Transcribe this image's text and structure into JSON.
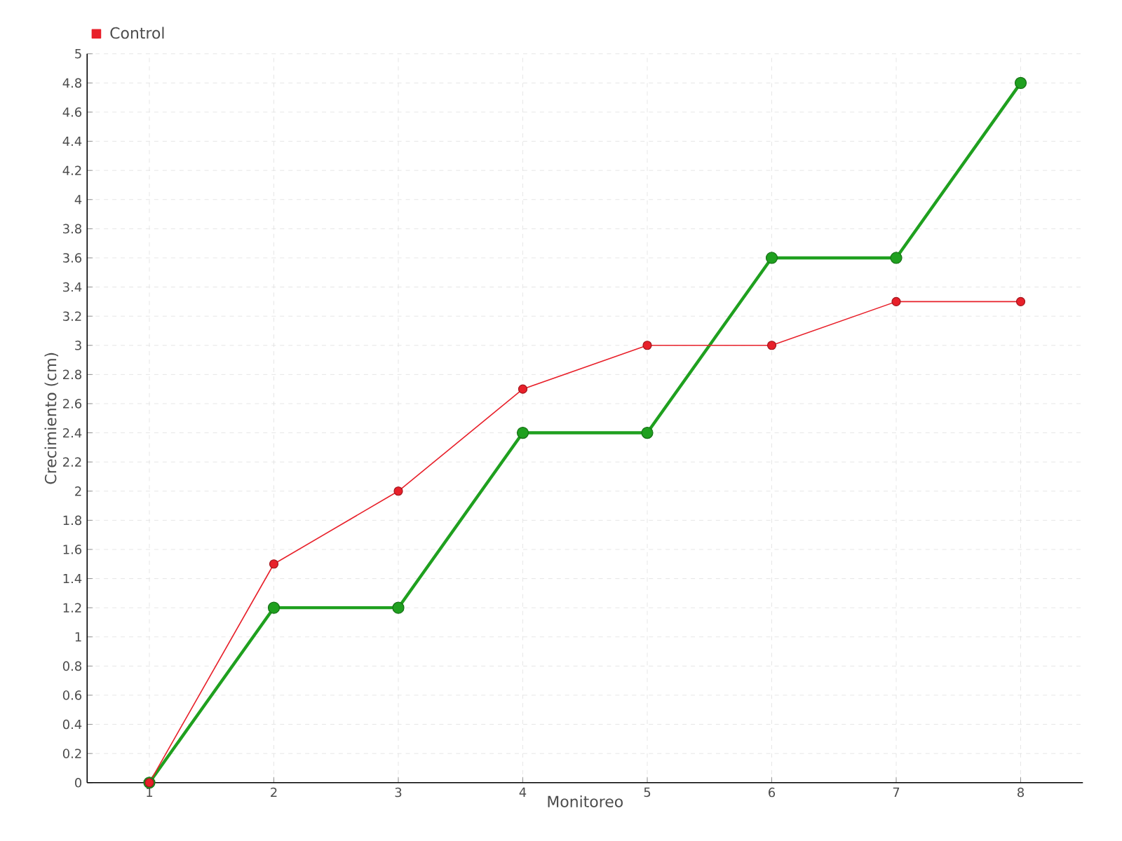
{
  "chart_data": {
    "type": "line",
    "xlabel": "Monitoreo",
    "ylabel": "Crecimiento (cm)",
    "xlim": [
      0.5,
      8.5
    ],
    "xticks": [
      1,
      2,
      3,
      4,
      5,
      6,
      7,
      8
    ],
    "ylim": [
      0,
      5
    ],
    "yticks": [
      0,
      0.2,
      0.4,
      0.6,
      0.8,
      1,
      1.2,
      1.4,
      1.6,
      1.8,
      2,
      2.2,
      2.4,
      2.6,
      2.8,
      3,
      3.2,
      3.4,
      3.6,
      3.8,
      4,
      4.2,
      4.4,
      4.6,
      4.8,
      5
    ],
    "x": [
      1,
      2,
      3,
      4,
      5,
      6,
      7,
      8
    ],
    "series": [
      {
        "color": "#1fa01f",
        "values": [
          0,
          1.2,
          1.2,
          2.4,
          2.4,
          3.6,
          3.6,
          4.8
        ]
      },
      {
        "name": "Control",
        "color": "#e8202a",
        "values": [
          0,
          1.5,
          2.0,
          2.7,
          3.0,
          3.0,
          3.3,
          3.3
        ]
      }
    ],
    "grid": true,
    "legend": "top left",
    "marker": "circle",
    "line_style": "solid"
  }
}
